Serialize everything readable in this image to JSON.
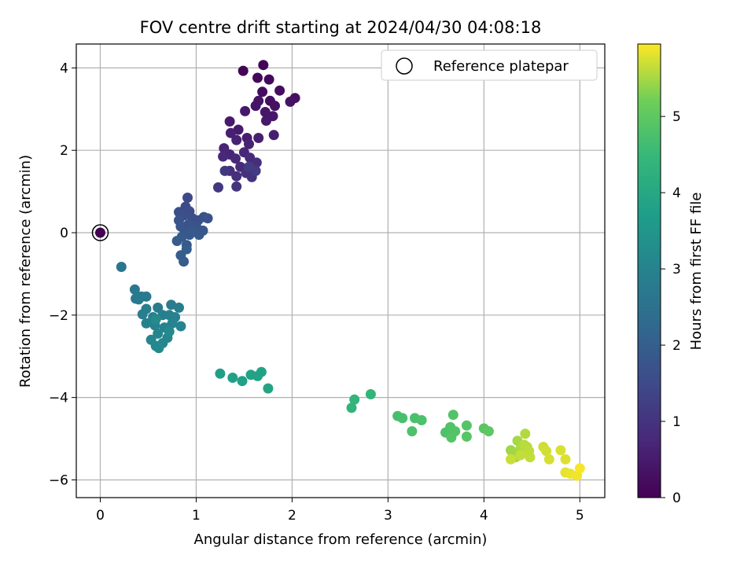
{
  "chart_data": {
    "type": "scatter",
    "title": "FOV centre drift starting at 2024/04/30 04:08:18",
    "xlabel": "Angular distance from reference (arcmin)",
    "ylabel": "Rotation from reference (arcmin)",
    "xlim": [
      -0.25,
      5.26
    ],
    "ylim": [
      -6.43,
      4.58
    ],
    "xticks": [
      0,
      1,
      2,
      3,
      4,
      5
    ],
    "yticks": [
      -6,
      -4,
      -2,
      0,
      2,
      4
    ],
    "grid": true,
    "legend": {
      "placement": "top-right",
      "entries": [
        "Reference platepar"
      ]
    },
    "colorbar": {
      "label": "Hours from first FF file",
      "range": [
        0,
        5.95
      ],
      "ticks": [
        0,
        1,
        2,
        3,
        4,
        5
      ],
      "colormap": "viridis"
    },
    "reference_point": {
      "x": 0,
      "y": 0,
      "hours": 0
    },
    "points": [
      [
        1.49,
        3.93,
        0.05
      ],
      [
        1.7,
        4.07,
        0.08
      ],
      [
        1.64,
        3.76,
        0.12
      ],
      [
        1.76,
        3.72,
        0.15
      ],
      [
        1.69,
        3.42,
        0.2
      ],
      [
        1.87,
        3.45,
        0.22
      ],
      [
        1.77,
        3.2,
        0.25
      ],
      [
        2.03,
        3.27,
        0.28
      ],
      [
        1.82,
        3.08,
        0.3
      ],
      [
        1.98,
        3.18,
        0.33
      ],
      [
        1.65,
        3.2,
        0.35
      ],
      [
        1.62,
        3.08,
        0.37
      ],
      [
        1.72,
        2.93,
        0.4
      ],
      [
        1.8,
        2.83,
        0.42
      ],
      [
        1.73,
        2.72,
        0.44
      ],
      [
        1.51,
        2.95,
        0.46
      ],
      [
        1.35,
        2.7,
        0.48
      ],
      [
        1.44,
        2.5,
        0.52
      ],
      [
        1.53,
        2.3,
        0.55
      ],
      [
        1.65,
        2.3,
        0.57
      ],
      [
        1.81,
        2.37,
        0.58
      ],
      [
        1.36,
        2.42,
        0.6
      ],
      [
        1.42,
        2.25,
        0.62
      ],
      [
        1.55,
        2.15,
        0.64
      ],
      [
        1.29,
        2.05,
        0.68
      ],
      [
        1.35,
        1.9,
        0.7
      ],
      [
        1.5,
        1.95,
        0.72
      ],
      [
        1.28,
        1.85,
        0.75
      ],
      [
        1.41,
        1.8,
        0.77
      ],
      [
        1.56,
        1.82,
        0.79
      ],
      [
        1.46,
        1.6,
        0.82
      ],
      [
        1.58,
        1.62,
        0.85
      ],
      [
        1.63,
        1.7,
        0.87
      ],
      [
        1.35,
        1.5,
        0.9
      ],
      [
        1.42,
        1.37,
        0.92
      ],
      [
        1.52,
        1.45,
        0.94
      ],
      [
        1.58,
        1.35,
        0.96
      ],
      [
        1.42,
        1.12,
        1.0
      ],
      [
        1.23,
        1.1,
        1.05
      ],
      [
        1.3,
        1.5,
        1.1
      ],
      [
        1.62,
        1.5,
        1.15
      ],
      [
        1.55,
        1.6,
        1.2
      ],
      [
        0.91,
        0.85,
        1.45
      ],
      [
        0.89,
        0.63,
        1.5
      ],
      [
        0.82,
        0.5,
        1.55
      ],
      [
        0.93,
        0.52,
        1.57
      ],
      [
        0.87,
        0.42,
        1.6
      ],
      [
        0.96,
        0.35,
        1.62
      ],
      [
        1.02,
        0.3,
        1.64
      ],
      [
        1.08,
        0.38,
        1.66
      ],
      [
        1.12,
        0.35,
        1.68
      ],
      [
        0.82,
        0.3,
        1.7
      ],
      [
        0.92,
        0.2,
        1.72
      ],
      [
        1.0,
        0.15,
        1.74
      ],
      [
        0.84,
        0.15,
        1.76
      ],
      [
        0.88,
        0.05,
        1.78
      ],
      [
        0.96,
        0.05,
        1.8
      ],
      [
        1.07,
        0.05,
        1.82
      ],
      [
        1.03,
        -0.05,
        1.84
      ],
      [
        0.93,
        -0.05,
        1.86
      ],
      [
        0.85,
        -0.1,
        1.88
      ],
      [
        0.8,
        -0.2,
        1.9
      ],
      [
        0.9,
        -0.3,
        1.92
      ],
      [
        0.84,
        -0.55,
        1.95
      ],
      [
        0.87,
        -0.7,
        1.97
      ],
      [
        0.9,
        -0.4,
        1.98
      ],
      [
        0.22,
        -0.83,
        2.6
      ],
      [
        0.36,
        -1.38,
        2.68
      ],
      [
        0.43,
        -1.55,
        2.7
      ],
      [
        0.48,
        -1.55,
        2.72
      ],
      [
        0.37,
        -1.6,
        2.74
      ],
      [
        0.4,
        -1.62,
        2.76
      ],
      [
        0.6,
        -1.82,
        2.78
      ],
      [
        0.74,
        -1.75,
        2.8
      ],
      [
        0.82,
        -1.82,
        2.82
      ],
      [
        0.48,
        -1.85,
        2.84
      ],
      [
        0.44,
        -1.98,
        2.86
      ],
      [
        0.55,
        -2.05,
        2.88
      ],
      [
        0.65,
        -2.0,
        2.9
      ],
      [
        0.72,
        -2.0,
        2.92
      ],
      [
        0.78,
        -2.05,
        2.94
      ],
      [
        0.48,
        -2.2,
        2.96
      ],
      [
        0.57,
        -2.25,
        2.98
      ],
      [
        0.67,
        -2.3,
        3.0
      ],
      [
        0.75,
        -2.2,
        3.02
      ],
      [
        0.84,
        -2.27,
        3.04
      ],
      [
        0.6,
        -2.45,
        3.06
      ],
      [
        0.7,
        -2.55,
        3.08
      ],
      [
        0.65,
        -2.68,
        3.1
      ],
      [
        0.53,
        -2.6,
        3.12
      ],
      [
        0.58,
        -2.75,
        3.14
      ],
      [
        0.61,
        -2.8,
        3.16
      ],
      [
        0.72,
        -2.4,
        3.18
      ],
      [
        0.58,
        -2.1,
        3.2
      ],
      [
        1.25,
        -3.42,
        3.75
      ],
      [
        1.38,
        -3.52,
        3.78
      ],
      [
        1.48,
        -3.6,
        3.8
      ],
      [
        1.57,
        -3.45,
        3.83
      ],
      [
        1.64,
        -3.48,
        3.85
      ],
      [
        1.68,
        -3.38,
        3.87
      ],
      [
        1.75,
        -3.78,
        3.9
      ],
      [
        2.62,
        -4.25,
        4.35
      ],
      [
        2.65,
        -4.05,
        4.38
      ],
      [
        2.82,
        -3.92,
        4.4
      ],
      [
        3.1,
        -4.45,
        4.7
      ],
      [
        3.15,
        -4.5,
        4.72
      ],
      [
        3.28,
        -4.5,
        4.75
      ],
      [
        3.35,
        -4.55,
        4.77
      ],
      [
        3.25,
        -4.82,
        4.79
      ],
      [
        3.6,
        -4.85,
        4.8
      ],
      [
        3.65,
        -4.72,
        4.82
      ],
      [
        3.68,
        -4.42,
        4.84
      ],
      [
        3.7,
        -4.82,
        4.86
      ],
      [
        3.66,
        -4.97,
        4.87
      ],
      [
        3.82,
        -4.68,
        4.88
      ],
      [
        3.82,
        -4.95,
        4.9
      ],
      [
        4.0,
        -4.75,
        4.95
      ],
      [
        4.05,
        -4.82,
        4.98
      ],
      [
        4.28,
        -5.28,
        5.45
      ],
      [
        4.3,
        -5.35,
        5.47
      ],
      [
        4.33,
        -5.45,
        5.48
      ],
      [
        4.35,
        -5.05,
        5.5
      ],
      [
        4.38,
        -5.25,
        5.52
      ],
      [
        4.4,
        -5.35,
        5.54
      ],
      [
        4.43,
        -4.88,
        5.56
      ],
      [
        4.45,
        -5.2,
        5.58
      ],
      [
        4.42,
        -5.15,
        5.6
      ],
      [
        4.47,
        -5.3,
        5.62
      ],
      [
        4.48,
        -5.45,
        5.64
      ],
      [
        4.38,
        -5.4,
        5.66
      ],
      [
        4.28,
        -5.5,
        5.68
      ],
      [
        4.62,
        -5.2,
        5.7
      ],
      [
        4.65,
        -5.3,
        5.72
      ],
      [
        4.68,
        -5.5,
        5.74
      ],
      [
        4.8,
        -5.28,
        5.76
      ],
      [
        4.85,
        -5.5,
        5.78
      ],
      [
        4.85,
        -5.82,
        5.82
      ],
      [
        4.9,
        -5.85,
        5.85
      ],
      [
        4.97,
        -5.9,
        5.88
      ],
      [
        5.0,
        -5.72,
        5.92
      ]
    ]
  },
  "colors": {
    "axis": "#000000",
    "grid": "#b0b0b0",
    "background": "#ffffff"
  }
}
